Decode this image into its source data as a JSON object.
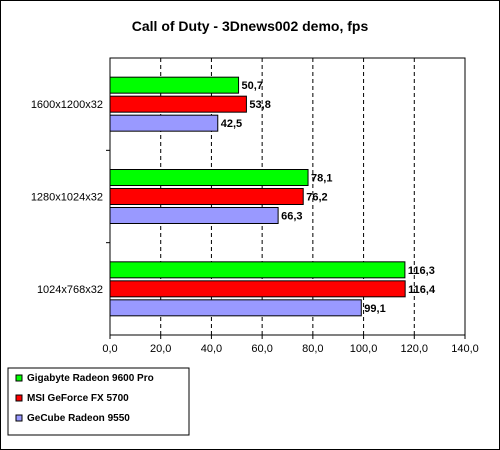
{
  "chart_data": {
    "type": "bar",
    "orientation": "horizontal",
    "title": "Call of Duty - 3Dnews002 demo, fps",
    "categories": [
      "1600x1200x32",
      "1280x1024x32",
      "1024x768x32"
    ],
    "series": [
      {
        "name": "Gigabyte Radeon 9600 Pro",
        "color": "#00ff00",
        "values": [
          50.7,
          78.1,
          116.3
        ],
        "labels": [
          "50,7",
          "78,1",
          "116,3"
        ]
      },
      {
        "name": "MSI GeForce FX 5700",
        "color": "#ff0000",
        "values": [
          53.8,
          76.2,
          116.4
        ],
        "labels": [
          "53,8",
          "76,2",
          "116,4"
        ]
      },
      {
        "name": "GeCube Radeon 9550",
        "color": "#9999ff",
        "values": [
          42.5,
          66.3,
          99.1
        ],
        "labels": [
          "42,5",
          "66,3",
          "99,1"
        ]
      }
    ],
    "xlim": [
      0,
      140
    ],
    "ticks": [
      0,
      20,
      40,
      60,
      80,
      100,
      120,
      140
    ],
    "tick_labels": [
      "0,0",
      "20,0",
      "40,0",
      "60,0",
      "80,0",
      "100,0",
      "120,0",
      "140,0"
    ],
    "grid": "vertical dashed",
    "legend_position": "bottom-left"
  }
}
